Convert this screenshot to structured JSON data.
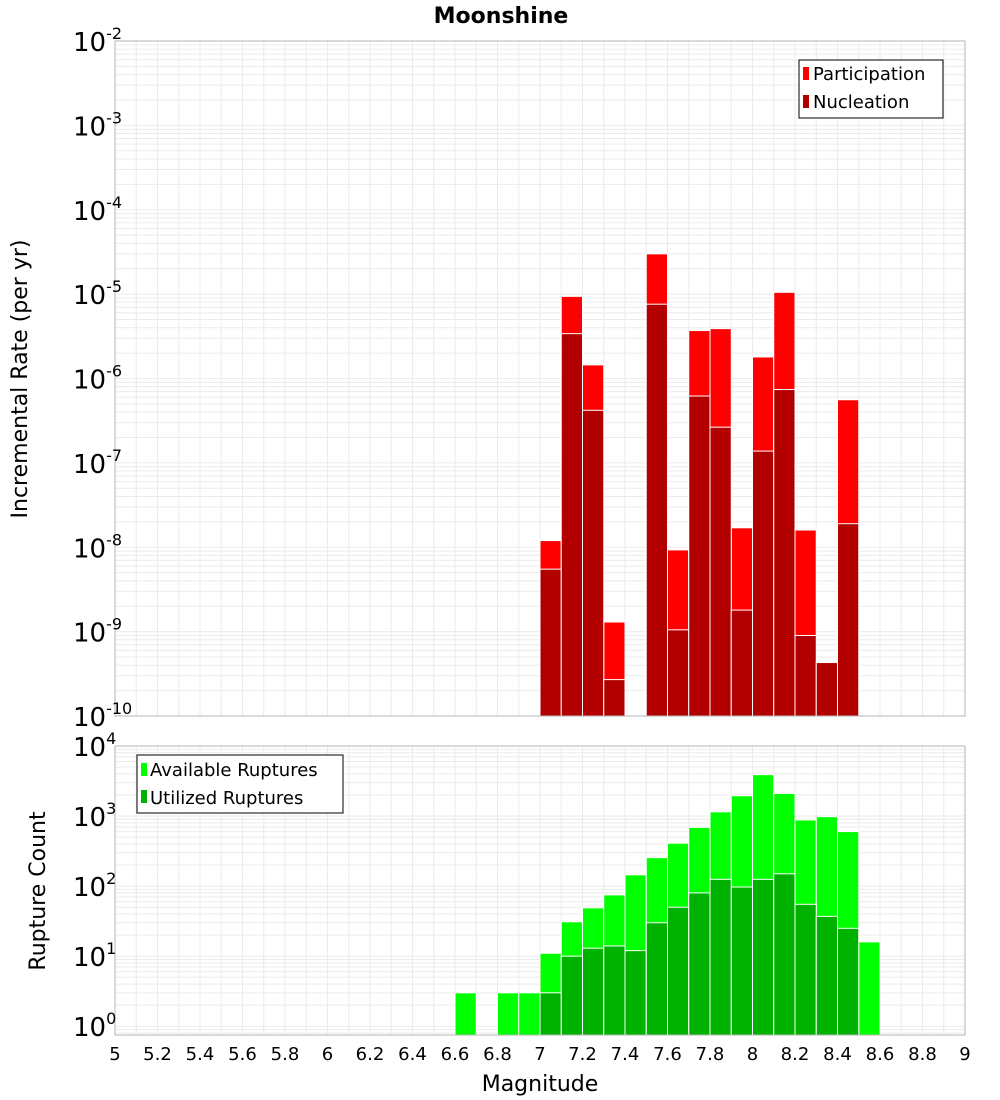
{
  "chart_data": [
    {
      "type": "bar",
      "title": "Moonshine",
      "xlabel": "",
      "ylabel": "Incremental Rate (per yr)",
      "yscale": "log",
      "xlim": [
        5,
        9
      ],
      "ylim": [
        1e-10,
        0.01
      ],
      "yticks": [
        {
          "base": "10",
          "exp": "-10",
          "value": 1e-10
        },
        {
          "base": "10",
          "exp": "-9",
          "value": 1e-09
        },
        {
          "base": "10",
          "exp": "-8",
          "value": 1e-08
        },
        {
          "base": "10",
          "exp": "-7",
          "value": 1e-07
        },
        {
          "base": "10",
          "exp": "-6",
          "value": 1e-06
        },
        {
          "base": "10",
          "exp": "-5",
          "value": 1e-05
        },
        {
          "base": "10",
          "exp": "-4",
          "value": 0.0001
        },
        {
          "base": "10",
          "exp": "-3",
          "value": 0.001
        },
        {
          "base": "10",
          "exp": "-2",
          "value": 0.01
        }
      ],
      "grid": true,
      "legend_position": "top-right",
      "x": [
        7.05,
        7.15,
        7.25,
        7.35,
        7.55,
        7.65,
        7.75,
        7.85,
        7.95,
        8.05,
        8.15,
        8.25,
        8.35,
        8.45
      ],
      "series": [
        {
          "name": "Participation",
          "color": "#ff0000",
          "values": [
            1.2e-08,
            9.4e-06,
            1.45e-06,
            1.3e-09,
            3e-05,
            9.3e-09,
            3.7e-06,
            3.9e-06,
            1.7e-08,
            1.8e-06,
            1.05e-05,
            1.6e-08,
            4.3e-10,
            5.6e-07
          ]
        },
        {
          "name": "Nucleation",
          "color": "#b20000",
          "values": [
            5.5e-09,
            3.4e-06,
            4.2e-07,
            2.7e-10,
            7.6e-06,
            1.05e-09,
            6.2e-07,
            2.65e-07,
            1.8e-09,
            1.38e-07,
            7.4e-07,
            9e-10,
            4.3e-10,
            1.9e-08
          ]
        }
      ]
    },
    {
      "type": "bar",
      "title": "",
      "xlabel": "Magnitude",
      "ylabel": "Rupture Count",
      "yscale": "log",
      "xlim": [
        5,
        9
      ],
      "ylim": [
        0.75,
        10000
      ],
      "xticks": [
        "5",
        "5.2",
        "5.4",
        "5.6",
        "5.8",
        "6",
        "6.2",
        "6.4",
        "6.6",
        "6.8",
        "7",
        "7.2",
        "7.4",
        "7.6",
        "7.8",
        "8",
        "8.2",
        "8.4",
        "8.6",
        "8.8",
        "9"
      ],
      "yticks": [
        {
          "base": "10",
          "exp": "0",
          "value": 1
        },
        {
          "base": "10",
          "exp": "1",
          "value": 10
        },
        {
          "base": "10",
          "exp": "2",
          "value": 100
        },
        {
          "base": "10",
          "exp": "3",
          "value": 1000
        },
        {
          "base": "10",
          "exp": "4",
          "value": 10000
        }
      ],
      "grid": true,
      "legend_position": "top-left",
      "x": [
        6.65,
        6.85,
        6.95,
        7.05,
        7.15,
        7.25,
        7.35,
        7.45,
        7.55,
        7.65,
        7.75,
        7.85,
        7.95,
        8.05,
        8.15,
        8.25,
        8.35,
        8.45,
        8.55
      ],
      "series": [
        {
          "name": "Available Ruptures",
          "color": "#00ff00",
          "values": [
            3,
            3,
            3,
            11,
            31,
            49,
            75,
            145,
            255,
            410,
            690,
            1150,
            1950,
            3900,
            2100,
            880,
            980,
            600,
            16
          ]
        },
        {
          "name": "Utilized Ruptures",
          "color": "#00b200",
          "values": [
            null,
            null,
            null,
            3,
            10,
            13,
            14,
            12,
            30,
            50,
            80,
            125,
            97,
            125,
            150,
            55,
            37,
            25,
            null
          ]
        }
      ]
    }
  ],
  "colors": {
    "grid": "#ebebeb",
    "frame": "#b4b4b4",
    "bar_separator": "#ffffff"
  }
}
